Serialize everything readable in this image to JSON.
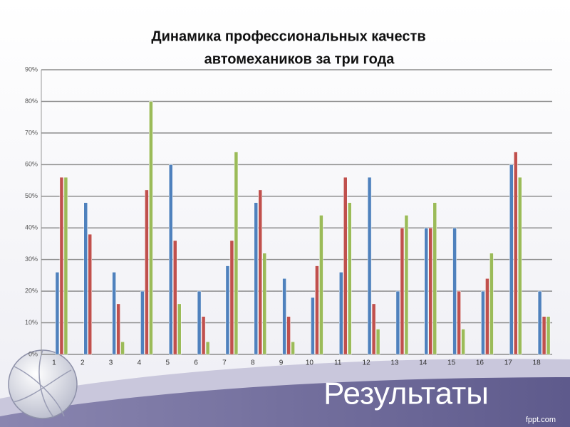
{
  "chart_data": {
    "type": "bar",
    "title": [
      "Динамика профессиональных качеств",
      "автомехаников за три года"
    ],
    "categories": [
      "1",
      "2",
      "3",
      "4",
      "5",
      "6",
      "7",
      "8",
      "9",
      "10",
      "11",
      "12",
      "13",
      "14",
      "15",
      "16",
      "17",
      "18"
    ],
    "series": [
      {
        "color": "#4f81bd",
        "values": [
          26,
          48,
          26,
          20,
          60,
          20,
          28,
          48,
          24,
          18,
          26,
          56,
          20,
          40,
          40,
          20,
          60,
          20
        ]
      },
      {
        "color": "#c0504d",
        "values": [
          56,
          38,
          16,
          52,
          36,
          12,
          36,
          52,
          12,
          28,
          56,
          16,
          40,
          40,
          20,
          24,
          64,
          12
        ]
      },
      {
        "color": "#9bbb59",
        "values": [
          56,
          0,
          4,
          80,
          16,
          4,
          64,
          32,
          4,
          44,
          48,
          8,
          44,
          48,
          8,
          32,
          56,
          12
        ]
      }
    ],
    "ylim": [
      0,
      90
    ],
    "yticks": [
      {
        "value": 0,
        "label": "0%"
      },
      {
        "value": 10,
        "label": "10%"
      },
      {
        "value": 20,
        "label": "20%"
      },
      {
        "value": 30,
        "label": "30%"
      },
      {
        "value": 40,
        "label": "40%"
      },
      {
        "value": 50,
        "label": "50%"
      },
      {
        "value": 60,
        "label": "60%"
      },
      {
        "value": 70,
        "label": "70%"
      },
      {
        "value": 80,
        "label": "80%"
      },
      {
        "value": 90,
        "label": "90%"
      }
    ],
    "grid": true
  },
  "slide": {
    "heading": "Результаты",
    "footer": "fppt.com"
  }
}
